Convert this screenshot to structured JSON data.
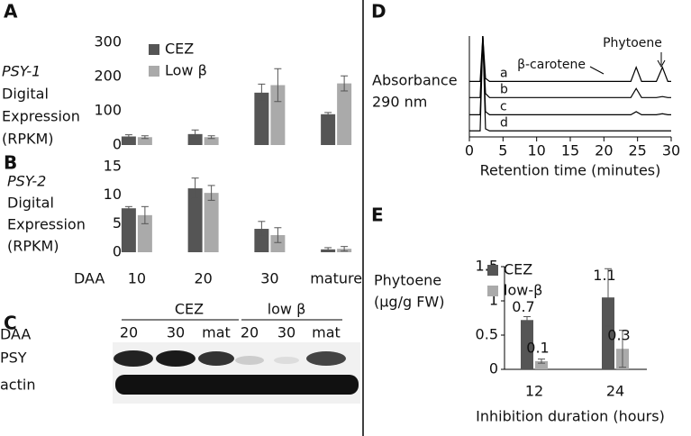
{
  "panel_letters": [
    "A",
    "B",
    "C",
    "D",
    "E"
  ],
  "blot": {
    "row_labels": [
      "DAA",
      "PSY",
      "actin"
    ],
    "groups": [
      "CEZ",
      "low β"
    ],
    "lanes": [
      "20",
      "30",
      "mat",
      "20",
      "30",
      "mat"
    ]
  },
  "chart_data": [
    {
      "type": "bar",
      "ylabel": [
        "PSY-1",
        "Digital",
        "Expression",
        "(RPKM)"
      ],
      "categories": [
        null,
        null,
        null,
        null
      ],
      "series": [
        {
          "name": "CEZ",
          "color": "#555555",
          "values": [
            25,
            32,
            153,
            90
          ],
          "errors": [
            5,
            12,
            25,
            5
          ]
        },
        {
          "name": "Low β",
          "color": "#aaaaaa",
          "values": [
            23,
            23,
            175,
            180
          ],
          "errors": [
            4,
            4,
            48,
            22
          ]
        }
      ],
      "ylim": [
        0,
        300
      ],
      "yticks": [
        0,
        100,
        200,
        300
      ],
      "grid": false,
      "legend": "upper left"
    },
    {
      "type": "bar",
      "ylabel": [
        "PSY-2",
        "Digital",
        "Expression",
        "(RPKM)"
      ],
      "xlabel": "DAA",
      "categories": [
        "10",
        "20",
        "30",
        "mature"
      ],
      "series": [
        {
          "name": null,
          "color": "#555555",
          "values": [
            7.7,
            11.2,
            4.1,
            0.5
          ],
          "errors": [
            0.3,
            1.8,
            1.3,
            0.3
          ]
        },
        {
          "name": null,
          "color": "#aaaaaa",
          "values": [
            6.5,
            10.4,
            3,
            0.6
          ],
          "errors": [
            1.5,
            1.3,
            1.3,
            0.4
          ]
        }
      ],
      "ylim": [
        0,
        15
      ],
      "yticks": [
        0,
        5,
        10,
        15
      ],
      "grid": false
    },
    {
      "type": "line",
      "ylabel": [
        "Absorbance",
        "290 nm"
      ],
      "xlabel": "Retention time (minutes)",
      "annotations": [
        "β-carotene",
        "Phytoene"
      ],
      "x": [
        0,
        1.6,
        2,
        2.4,
        3,
        10,
        20,
        24,
        24.8,
        25.6,
        27.8,
        28.7,
        29.5,
        30
      ],
      "series": [
        {
          "name": "a",
          "color": "#000000",
          "values": [
            5.5,
            5.5,
            10,
            5.8,
            5.5,
            5.5,
            5.5,
            5.5,
            6.9,
            5.5,
            5.5,
            6.9,
            5.5,
            5.5
          ]
        },
        {
          "name": "b",
          "color": "#000000",
          "values": [
            3.9,
            3.9,
            10,
            4.3,
            3.9,
            3.9,
            3.9,
            3.9,
            4.8,
            3.9,
            3.9,
            4.0,
            3.9,
            3.9
          ]
        },
        {
          "name": "c",
          "color": "#000000",
          "values": [
            2.2,
            2.2,
            10,
            2.5,
            2.2,
            2.2,
            2.2,
            2.2,
            2.5,
            2.2,
            2.2,
            2.3,
            2.2,
            2.2
          ]
        },
        {
          "name": "d",
          "color": "#000000",
          "values": [
            0.6,
            0.6,
            10,
            0.8,
            0.6,
            0.6,
            0.6,
            0.6,
            0.6,
            0.6,
            0.6,
            0.6,
            0.6,
            0.6
          ]
        }
      ],
      "xlim": [
        0,
        30
      ],
      "xticks": [
        0,
        5,
        10,
        15,
        20,
        25,
        30
      ],
      "ylim": [
        0,
        10
      ]
    },
    {
      "type": "bar",
      "ylabel": [
        "Phytoene",
        "(µg/g FW)"
      ],
      "xlabel": "Inhibition duration (hours)",
      "categories": [
        "12",
        "24"
      ],
      "series": [
        {
          "name": "CEZ",
          "color": "#555555",
          "values": [
            0.72,
            1.05
          ],
          "value_labels": [
            "0.7",
            "1.1"
          ],
          "errors": [
            0.05,
            0.42
          ]
        },
        {
          "name": "low-β",
          "color": "#aaaaaa",
          "values": [
            0.12,
            0.3
          ],
          "value_labels": [
            "0.1",
            "0.3"
          ],
          "errors": [
            0.03,
            0.27
          ]
        }
      ],
      "ylim": [
        0,
        1.5
      ],
      "yticks": [
        0,
        0.5,
        1,
        1.5
      ],
      "grid": false,
      "legend": "upper left"
    }
  ]
}
